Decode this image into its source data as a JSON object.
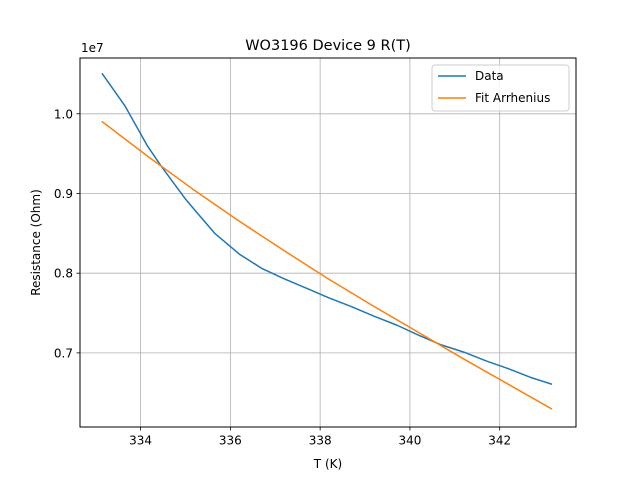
{
  "chart_data": {
    "type": "line",
    "title": "WO3196 Device 9 R(T)",
    "xlabel": "T (K)",
    "ylabel": "Resistance (Ohm)",
    "y_offset_label": "1e7",
    "xlim": [
      332.65,
      343.7
    ],
    "ylim": [
      6.07,
      10.7
    ],
    "x_ticks": [
      334,
      336,
      338,
      340,
      342
    ],
    "y_ticks": [
      0.7,
      0.8,
      0.9,
      1.0
    ],
    "y_tick_labels": [
      "0.7",
      "0.8",
      "0.9",
      "1.0"
    ],
    "y_scale_note": "values in units of 1e7 Ohm",
    "grid": true,
    "legend_position": "top-right",
    "series": [
      {
        "name": "Data",
        "color": "#1f77b4",
        "x": [
          333.15,
          333.4,
          333.65,
          333.9,
          334.15,
          334.45,
          334.75,
          335.0,
          335.3,
          335.65,
          336.2,
          336.7,
          337.2,
          337.7,
          338.2,
          338.7,
          339.2,
          339.7,
          340.2,
          340.7,
          341.2,
          341.7,
          342.2,
          342.7,
          343.15
        ],
        "y": [
          10.5,
          10.3,
          10.1,
          9.85,
          9.6,
          9.35,
          9.12,
          8.93,
          8.73,
          8.5,
          8.24,
          8.06,
          7.93,
          7.81,
          7.69,
          7.58,
          7.46,
          7.35,
          7.22,
          7.1,
          7.01,
          6.9,
          6.8,
          6.69,
          6.61
        ]
      },
      {
        "name": "Fit Arrhenius",
        "color": "#ff7f0e",
        "x": [
          333.15,
          334.15,
          335.15,
          336.15,
          337.15,
          338.15,
          339.15,
          340.15,
          341.15,
          342.15,
          343.15
        ],
        "y": [
          9.9,
          9.47,
          9.06,
          8.67,
          8.3,
          7.94,
          7.6,
          7.27,
          6.94,
          6.62,
          6.3
        ]
      }
    ]
  }
}
